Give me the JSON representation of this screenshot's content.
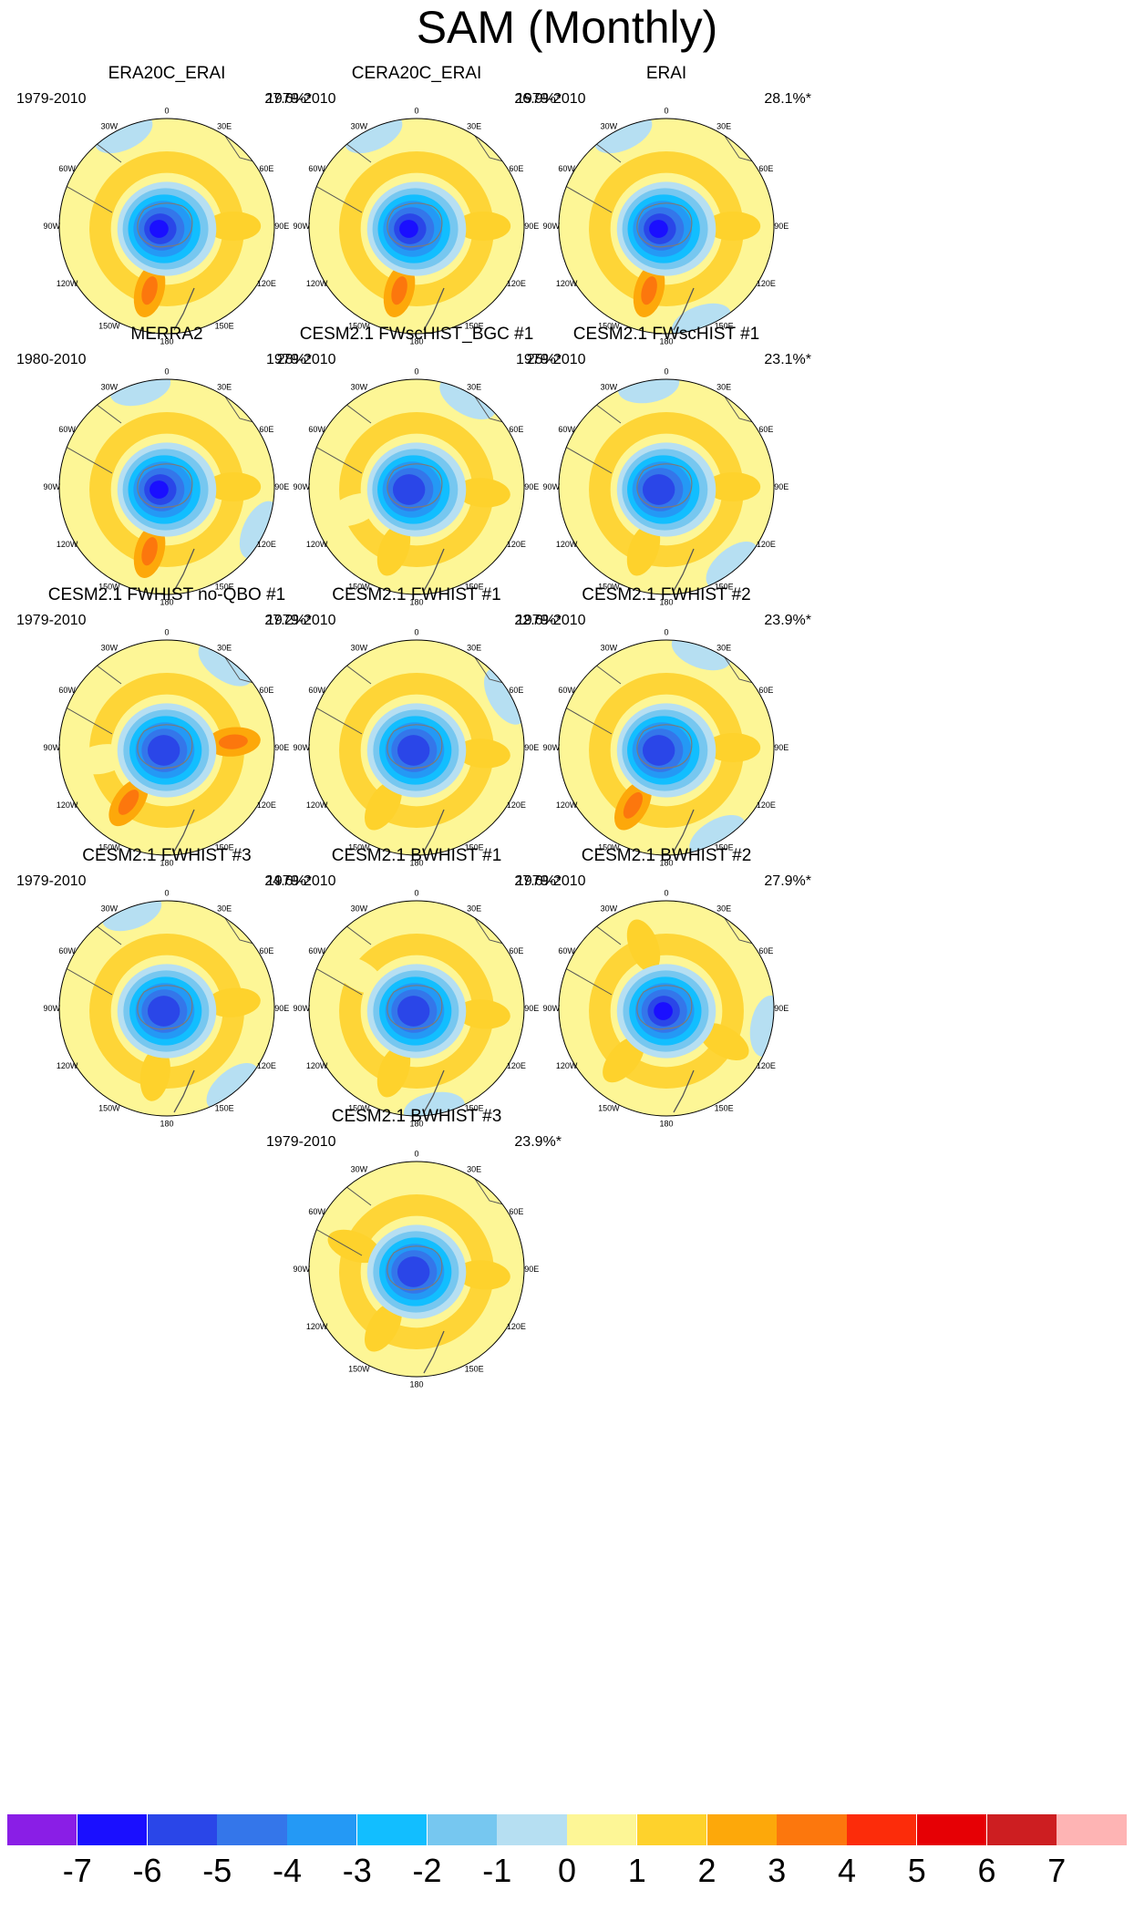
{
  "title": "SAM (Monthly)",
  "panels": [
    {
      "name": "ERA20C_ERAI",
      "period": "1979-2010",
      "variance": "27.6%*",
      "ring": {
        "max": -6,
        "skew": "west"
      },
      "pos": [
        {
          "lon": 90,
          "v": 2
        },
        {
          "lon": 195,
          "v": 3
        }
      ],
      "blue_patches": [
        {
          "lon": -25,
          "r": 0.95
        }
      ]
    },
    {
      "name": "CERA20C_ERAI",
      "period": "1979-2010",
      "variance": "26.9%*",
      "ring": {
        "max": -6,
        "skew": "west"
      },
      "pos": [
        {
          "lon": 90,
          "v": 2
        },
        {
          "lon": 195,
          "v": 3
        }
      ],
      "blue_patches": [
        {
          "lon": -25,
          "r": 0.95
        }
      ]
    },
    {
      "name": "ERAI",
      "period": "1979-2010",
      "variance": "28.1%*",
      "ring": {
        "max": -6,
        "skew": "west"
      },
      "pos": [
        {
          "lon": 90,
          "v": 2
        },
        {
          "lon": 195,
          "v": 3
        }
      ],
      "blue_patches": [
        {
          "lon": -25,
          "r": 0.95
        },
        {
          "lon": 160,
          "r": 0.95
        }
      ]
    },
    {
      "name": "MERRA2",
      "period": "1980-2010",
      "variance": "28%*",
      "ring": {
        "max": -6,
        "skew": "west"
      },
      "pos": [
        {
          "lon": 90,
          "v": 2
        },
        {
          "lon": 195,
          "v": 3
        }
      ],
      "blue_patches": [
        {
          "lon": -15,
          "r": 0.95
        },
        {
          "lon": 115,
          "r": 0.95
        }
      ]
    },
    {
      "name": "CESM2.1 FWscHIST_BGC #1",
      "period": "1979-2010",
      "variance": "25%*",
      "ring": {
        "max": -5,
        "skew": "west"
      },
      "pos": [
        {
          "lon": 95,
          "v": 2
        },
        {
          "lon": 200,
          "v": 2
        },
        {
          "lon": 250,
          "v": 1
        }
      ],
      "blue_patches": [
        {
          "lon": 30,
          "r": 0.95
        }
      ]
    },
    {
      "name": "CESM2.1 FWscHIST #1",
      "period": "1979-2010",
      "variance": "23.1%*",
      "ring": {
        "max": -5,
        "skew": "west"
      },
      "pos": [
        {
          "lon": 90,
          "v": 2
        },
        {
          "lon": 200,
          "v": 2
        }
      ],
      "blue_patches": [
        {
          "lon": -10,
          "r": 0.95
        },
        {
          "lon": 140,
          "r": 0.95
        }
      ]
    },
    {
      "name": "CESM2.1 FWHIST no-QBO #1",
      "period": "1979-2010",
      "variance": "27.2%*",
      "ring": {
        "max": -5,
        "skew": "center"
      },
      "pos": [
        {
          "lon": 85,
          "v": 3
        },
        {
          "lon": 215,
          "v": 3
        },
        {
          "lon": 260,
          "v": 1
        }
      ],
      "blue_patches": [
        {
          "lon": 35,
          "r": 0.95
        }
      ]
    },
    {
      "name": "CESM2.1 FWHIST #1",
      "period": "1979-2010",
      "variance": "22.6%*",
      "ring": {
        "max": -5,
        "skew": "center"
      },
      "pos": [
        {
          "lon": 95,
          "v": 2
        },
        {
          "lon": 210,
          "v": 2
        }
      ],
      "blue_patches": [
        {
          "lon": 60,
          "r": 0.95
        }
      ]
    },
    {
      "name": "CESM2.1 FWHIST #2",
      "period": "1979-2010",
      "variance": "23.9%*",
      "ring": {
        "max": -5,
        "skew": "west"
      },
      "pos": [
        {
          "lon": 90,
          "v": 2
        },
        {
          "lon": 210,
          "v": 3
        }
      ],
      "blue_patches": [
        {
          "lon": 20,
          "r": 0.95
        },
        {
          "lon": 150,
          "r": 0.95
        }
      ]
    },
    {
      "name": "CESM2.1 FWHIST #3",
      "period": "1979-2010",
      "variance": "24.6%*",
      "ring": {
        "max": -5,
        "skew": "center"
      },
      "pos": [
        {
          "lon": 85,
          "v": 2
        },
        {
          "lon": 190,
          "v": 2
        }
      ],
      "blue_patches": [
        {
          "lon": -20,
          "r": 0.95
        },
        {
          "lon": 140,
          "r": 0.95
        }
      ]
    },
    {
      "name": "CESM2.1 BWHIST #1",
      "period": "1979-2010",
      "variance": "27.6%*",
      "ring": {
        "max": -5,
        "skew": "center"
      },
      "pos": [
        {
          "lon": 95,
          "v": 2
        },
        {
          "lon": 200,
          "v": 2
        },
        {
          "lon": -60,
          "v": 1
        }
      ],
      "blue_patches": [
        {
          "lon": 170,
          "r": 0.95
        }
      ]
    },
    {
      "name": "CESM2.1 BWHIST #2",
      "period": "1979-2010",
      "variance": "27.9%*",
      "ring": {
        "max": -6,
        "skew": "center"
      },
      "pos": [
        {
          "lon": 120,
          "v": 2
        },
        {
          "lon": 220,
          "v": 2
        },
        {
          "lon": -20,
          "v": 2
        }
      ],
      "blue_patches": [
        {
          "lon": 100,
          "r": 0.95
        }
      ]
    },
    {
      "name": "CESM2.1 BWHIST #3",
      "period": "1979-2010",
      "variance": "23.9%*",
      "ring": {
        "max": -5,
        "skew": "center"
      },
      "pos": [
        {
          "lon": 95,
          "v": 2
        },
        {
          "lon": 210,
          "v": 2
        },
        {
          "lon": -70,
          "v": 2
        }
      ],
      "blue_patches": []
    }
  ],
  "lon_labels": [
    "0",
    "30E",
    "60E",
    "90E",
    "120E",
    "150E",
    "180",
    "150W",
    "120W",
    "90W",
    "60W",
    "30W"
  ],
  "colorbar": {
    "colors": [
      "#8a1ee6",
      "#1a0fff",
      "#2a46e8",
      "#3476ea",
      "#2499f5",
      "#12beff",
      "#76c7f0",
      "#b6dff2",
      "#fdf696",
      "#fed22c",
      "#fda80a",
      "#fc770d",
      "#fc2c0a",
      "#e60005",
      "#cd1e21",
      "#feb4b4"
    ],
    "labels": [
      "-7",
      "-6",
      "-5",
      "-4",
      "-3",
      "-2",
      "-1",
      "0",
      "1",
      "2",
      "3",
      "4",
      "5",
      "6",
      "7"
    ]
  }
}
